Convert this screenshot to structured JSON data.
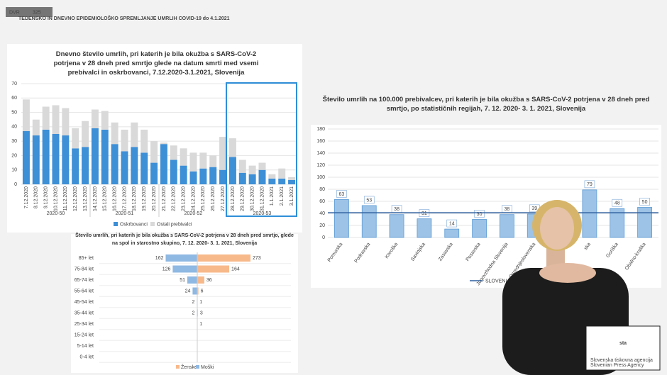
{
  "header": {
    "title": "TEDENSKO IN DNEVNO EPIDEMIOLOŠKO SPREMLJANJE UMRLIH COVID-19  do 4.1.2021",
    "badge": "DVR",
    "viewers": "325"
  },
  "logo": {
    "name": "sta",
    "line1": "Slovenska tiskovna agencija",
    "line2": "Slovenian Press Agency"
  },
  "chart_data": [
    {
      "type": "stacked-bar",
      "title": "Dnevno število umrlih, pri katerih je bila okužba s SARS-CoV-2 potrjena v 28 dneh pred smrtjo glede na datum smrti med vsemi prebivalci in oskrbovanci, 7.12.2020-3.1.2021, Slovenija",
      "categories": [
        "7.12.2020",
        "8.12.2020",
        "9.12.2020",
        "10.12.2020",
        "11.12.2020",
        "12.12.2020",
        "13.12.2020",
        "14.12.2020",
        "15.12.2020",
        "16.12.2020",
        "17.12.2020",
        "18.12.2020",
        "19.12.2020",
        "20.12.2020",
        "21.12.2020",
        "22.12.2020",
        "23.12.2020",
        "24.12.2020",
        "25.12.2020",
        "26.12.2020",
        "27.12.2020",
        "28.12.2020",
        "29.12.2020",
        "30.12.2020",
        "31.12.2020",
        "1.1.2021",
        "2.1.2021",
        "3.1.2021"
      ],
      "groups": [
        "2020-50",
        "2020-51",
        "2020-52",
        "2020-53"
      ],
      "series": [
        {
          "name": "Oskrbovanci",
          "color": "#3d8fd6",
          "values": [
            37,
            34,
            38,
            35,
            34,
            25,
            26,
            39,
            38,
            28,
            23,
            26,
            22,
            15,
            28,
            17,
            13,
            9,
            11,
            12,
            10,
            19,
            8,
            7,
            10,
            4,
            4,
            3
          ]
        },
        {
          "name": "Ostali prebivalci",
          "color": "#d9d9d9",
          "values": [
            22,
            11,
            16,
            20,
            19,
            14,
            18,
            13,
            13,
            15,
            15,
            17,
            16,
            15,
            1,
            10,
            12,
            13,
            11,
            8,
            23,
            13,
            9,
            6,
            5,
            3,
            7,
            2
          ]
        }
      ],
      "ylim": [
        0,
        70
      ],
      "yticks": [
        0,
        10,
        20,
        30,
        40,
        50,
        60,
        70
      ],
      "grid": true,
      "legend": "bottom"
    },
    {
      "type": "bar",
      "title": "Število umrlih na 100.000 prebivalcev, pri katerih je bila okužba s SARS-CoV-2 potrjena v 28 dneh pred smrtjo, po statističnih regijah, 7. 12. 2020- 3. 1. 2021, Slovenija",
      "categories": [
        "Pomurska",
        "Podravska",
        "Koroška",
        "Savinjska",
        "Zasavska",
        "Posavska",
        "Jugovzhodna Slovenija",
        "Osrednjeslovenska",
        null,
        "ska",
        "Goriška",
        "Obalno-kraška"
      ],
      "values": [
        63,
        53,
        38,
        31,
        14,
        30,
        38,
        39,
        null,
        79,
        48,
        50
      ],
      "color": "#9dc3e6",
      "reference": {
        "name": "SLOVENIJA",
        "value": 41,
        "color": "#2f5f9e"
      },
      "ylim": [
        0,
        180
      ],
      "yticks": [
        0,
        20,
        40,
        60,
        80,
        100,
        120,
        140,
        160,
        180
      ],
      "grid": true,
      "legend": "bottom"
    },
    {
      "type": "pyramid",
      "title": "Število umrlih, pri katerih je bila okužba s SARS-CoV-2 potrjena v 28 dneh pred smrtjo, glede na spol in starostno skupino, 7. 12. 2020- 3. 1. 2021, Slovenija",
      "categories": [
        "85+ let",
        "75-84 let",
        "65-74 let",
        "55-64 let",
        "45-54 let",
        "35-44 let",
        "25-34 let",
        "15-24 let",
        "5-14 let",
        "0-4 let"
      ],
      "series": [
        {
          "name": "Ženske",
          "color": "#f8b98a",
          "side": "right",
          "values": [
            273,
            164,
            36,
            6,
            1,
            3,
            1,
            null,
            null,
            null
          ]
        },
        {
          "name": "Moški",
          "color": "#8fb8e3",
          "side": "left",
          "values": [
            162,
            126,
            51,
            24,
            2,
            2,
            null,
            null,
            null,
            null
          ]
        }
      ],
      "legend": "bottom"
    }
  ]
}
